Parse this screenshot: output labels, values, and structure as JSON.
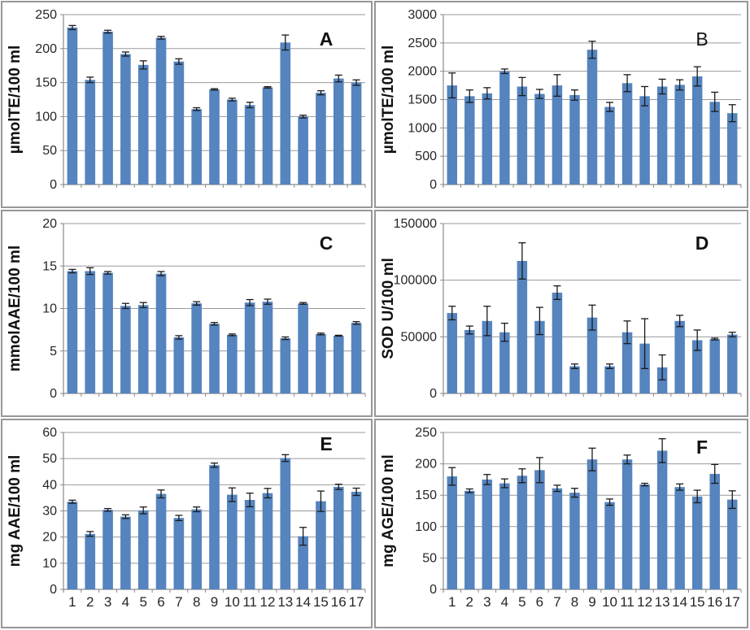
{
  "colors": {
    "bar": "#5584BF",
    "error_bar": "#1a1a1a",
    "gridline": "#9a9a9a",
    "axis_line": "#8a8a8a",
    "tick_text": "#262626",
    "label_text": "#111111",
    "panel_border": "#979797",
    "panel_background": "#ffffff"
  },
  "chart_data": [
    {
      "type": "bar",
      "panel_label": "A",
      "panel_label_bold": true,
      "ylabel": "µmolTE/100 ml",
      "ylim": [
        0,
        250
      ],
      "ytick_step": 50,
      "grid": true,
      "show_x_tick_labels": false,
      "categories": [
        "1",
        "2",
        "3",
        "4",
        "5",
        "6",
        "7",
        "8",
        "9",
        "10",
        "11",
        "12",
        "13",
        "14",
        "15",
        "16",
        "17"
      ],
      "values": [
        231,
        154,
        225,
        192,
        176,
        216,
        181,
        111,
        140,
        125,
        117,
        143,
        209,
        100,
        135,
        156,
        150
      ],
      "errors": [
        3,
        4,
        2,
        3,
        6,
        2,
        4,
        2,
        1,
        2,
        4,
        1,
        11,
        2,
        3,
        5,
        4
      ]
    },
    {
      "type": "bar",
      "panel_label": "B",
      "panel_label_bold": false,
      "ylabel": "µmolTE/100 ml",
      "ylim": [
        0,
        3000
      ],
      "ytick_step": 500,
      "grid": true,
      "show_x_tick_labels": false,
      "categories": [
        "1",
        "2",
        "3",
        "4",
        "5",
        "6",
        "7",
        "8",
        "9",
        "10",
        "11",
        "12",
        "13",
        "14",
        "15",
        "16",
        "17"
      ],
      "values": [
        1750,
        1560,
        1610,
        2000,
        1730,
        1600,
        1750,
        1580,
        2380,
        1370,
        1790,
        1560,
        1730,
        1760,
        1910,
        1460,
        1260
      ],
      "errors": [
        220,
        110,
        100,
        40,
        160,
        80,
        190,
        90,
        150,
        80,
        150,
        170,
        130,
        90,
        170,
        170,
        150
      ]
    },
    {
      "type": "bar",
      "panel_label": "C",
      "panel_label_bold": true,
      "ylabel": "mmolAAE/100 ml",
      "ylim": [
        0,
        20
      ],
      "ytick_step": 5,
      "grid": true,
      "show_x_tick_labels": false,
      "categories": [
        "1",
        "2",
        "3",
        "4",
        "5",
        "6",
        "7",
        "8",
        "9",
        "10",
        "11",
        "12",
        "13",
        "14",
        "15",
        "16",
        "17"
      ],
      "values": [
        14.4,
        14.4,
        14.2,
        10.3,
        10.4,
        14.1,
        6.6,
        10.6,
        8.2,
        6.9,
        10.7,
        10.8,
        6.5,
        10.6,
        7.0,
        6.8,
        8.3
      ],
      "errors": [
        0.2,
        0.4,
        0.15,
        0.3,
        0.3,
        0.25,
        0.2,
        0.2,
        0.15,
        0.1,
        0.35,
        0.3,
        0.15,
        0.1,
        0.1,
        0.05,
        0.15
      ]
    },
    {
      "type": "bar",
      "panel_label": "D",
      "panel_label_bold": true,
      "ylabel": "SOD U/100 ml",
      "ylim": [
        0,
        150000
      ],
      "ytick_step": 50000,
      "grid": true,
      "show_x_tick_labels": false,
      "categories": [
        "1",
        "2",
        "3",
        "4",
        "5",
        "6",
        "7",
        "8",
        "9",
        "10",
        "11",
        "12",
        "13",
        "14",
        "15",
        "16",
        "17"
      ],
      "values": [
        71000,
        56000,
        64000,
        54000,
        117000,
        64000,
        89000,
        24000,
        67000,
        24000,
        54000,
        44000,
        23000,
        64000,
        47000,
        48000,
        52000
      ],
      "errors": [
        6000,
        3500,
        13000,
        8000,
        16000,
        12000,
        6000,
        2000,
        11000,
        2000,
        10000,
        22000,
        11000,
        5000,
        9000,
        800,
        2000
      ]
    },
    {
      "type": "bar",
      "panel_label": "E",
      "panel_label_bold": true,
      "ylabel": "mg AAE/100 ml",
      "ylim": [
        0,
        60
      ],
      "ytick_step": 10,
      "grid": true,
      "show_x_tick_labels": true,
      "categories": [
        "1",
        "2",
        "3",
        "4",
        "5",
        "6",
        "7",
        "8",
        "9",
        "10",
        "11",
        "12",
        "13",
        "14",
        "15",
        "16",
        "17"
      ],
      "values": [
        33.5,
        21.2,
        30.4,
        27.8,
        30.2,
        36.5,
        27.3,
        30.6,
        47.5,
        36.2,
        34.2,
        36.8,
        50.2,
        20.3,
        33.7,
        39.2,
        37.3
      ],
      "errors": [
        0.6,
        0.9,
        0.5,
        0.7,
        1.3,
        1.5,
        1.0,
        0.9,
        0.8,
        2.6,
        2.6,
        1.8,
        1.3,
        3.4,
        3.9,
        1.0,
        1.4
      ]
    },
    {
      "type": "bar",
      "panel_label": "F",
      "panel_label_bold": true,
      "ylabel": "mg AGE/100 ml",
      "ylim": [
        0,
        250
      ],
      "ytick_step": 50,
      "grid": true,
      "show_x_tick_labels": true,
      "categories": [
        "1",
        "2",
        "3",
        "4",
        "5",
        "6",
        "7",
        "8",
        "9",
        "10",
        "11",
        "12",
        "13",
        "14",
        "15",
        "16",
        "17"
      ],
      "values": [
        180,
        157,
        175,
        169,
        181,
        190,
        161,
        154,
        207,
        139,
        207,
        167,
        221,
        163,
        148,
        184,
        143
      ],
      "errors": [
        14,
        3,
        8,
        7,
        11,
        20,
        5,
        7,
        18,
        5,
        7,
        2,
        19,
        5,
        10,
        15,
        14
      ]
    }
  ]
}
